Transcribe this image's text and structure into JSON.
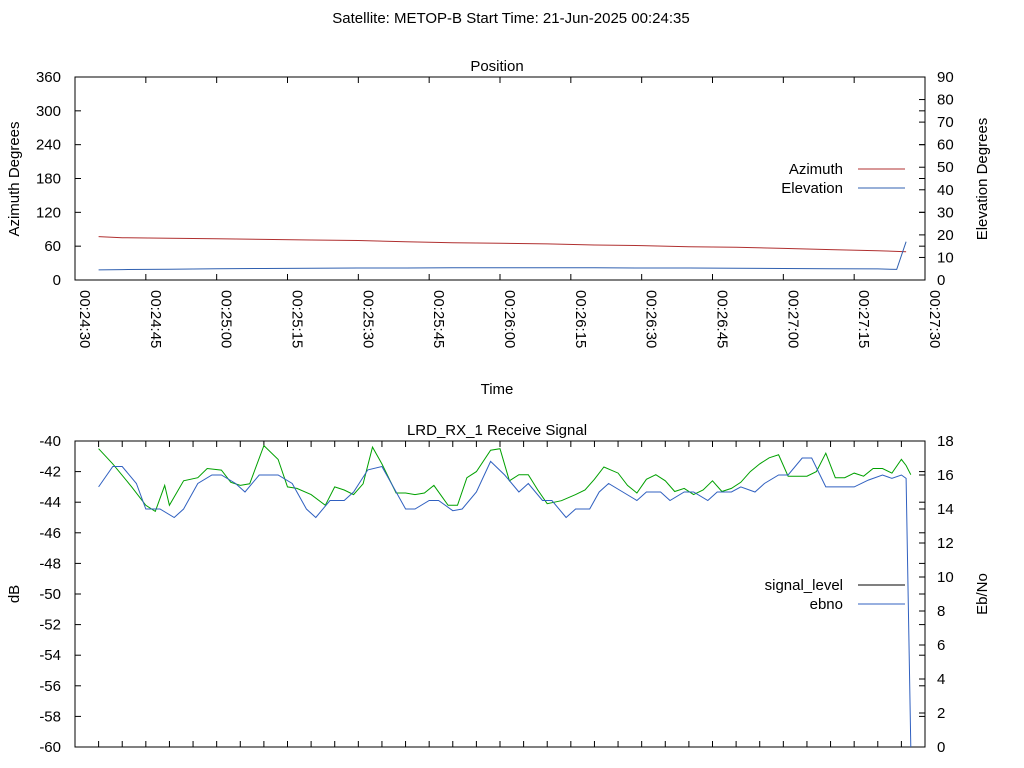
{
  "header": {
    "title": "Satellite: METOP-B    Start Time: 21-Jun-2025 00:24:35"
  },
  "colors": {
    "azimuth": "#b03030",
    "elevation": "#3060b0",
    "signal_level": "#00a000",
    "ebno": "#3060c0",
    "legend_signal_level": "#000000",
    "axis": "#000000"
  },
  "chart_data": [
    {
      "type": "line",
      "title": "Position",
      "xlabel": "Time",
      "ylabel": "Azimuth Degrees",
      "y2label": "Elevation Degrees",
      "x_ticks": [
        "00:24:30",
        "00:24:45",
        "00:25:00",
        "00:25:15",
        "00:25:30",
        "00:25:45",
        "00:26:00",
        "00:26:15",
        "00:26:30",
        "00:26:45",
        "00:27:00",
        "00:27:15",
        "00:27:30"
      ],
      "x_range_s": [
        0,
        180
      ],
      "ylim": [
        0,
        360
      ],
      "y_ticks": [
        0,
        60,
        120,
        180,
        240,
        300,
        360
      ],
      "y2lim": [
        0,
        90
      ],
      "y2_ticks": [
        0,
        10,
        20,
        30,
        40,
        50,
        60,
        70,
        80,
        90
      ],
      "legend_position": "right",
      "series": [
        {
          "name": "Azimuth",
          "axis": "y",
          "x": [
            5,
            10,
            20,
            30,
            40,
            50,
            60,
            70,
            80,
            90,
            100,
            110,
            120,
            130,
            140,
            150,
            160,
            170,
            176
          ],
          "values": [
            77,
            75,
            74,
            73,
            72,
            71,
            70,
            68,
            66,
            65,
            64,
            62,
            61,
            59,
            58,
            56,
            54,
            52,
            50
          ]
        },
        {
          "name": "Elevation",
          "axis": "y2",
          "x": [
            5,
            10,
            20,
            30,
            40,
            50,
            60,
            70,
            80,
            90,
            100,
            110,
            120,
            130,
            140,
            150,
            160,
            170,
            174,
            176
          ],
          "values": [
            4.5,
            4.6,
            4.8,
            5,
            5.1,
            5.2,
            5.3,
            5.3,
            5.4,
            5.4,
            5.4,
            5.4,
            5.3,
            5.3,
            5.2,
            5.1,
            5,
            4.9,
            4.7,
            17
          ]
        }
      ]
    },
    {
      "type": "line",
      "title": "LRD_RX_1 Receive Signal",
      "ylabel": "dB",
      "y2label": "Eb/No",
      "ylim": [
        -60,
        -40
      ],
      "y_ticks": [
        -40,
        -42,
        -44,
        -46,
        -48,
        -50,
        -52,
        -54,
        -56,
        -58,
        -60
      ],
      "y2lim": [
        0,
        18
      ],
      "y2_ticks": [
        0,
        2,
        4,
        6,
        8,
        10,
        12,
        14,
        16,
        18
      ],
      "x_range_s": [
        0,
        180
      ],
      "legend_position": "right",
      "series": [
        {
          "name": "signal_level",
          "axis": "y",
          "x": [
            5,
            8,
            12,
            15,
            17,
            19,
            20,
            23,
            26,
            28,
            31,
            33,
            35,
            37,
            40,
            43,
            45,
            47,
            50,
            53,
            55,
            57,
            59,
            61,
            63,
            65,
            68,
            70,
            72,
            74,
            76,
            79,
            81,
            83,
            85,
            88,
            90,
            92,
            94,
            96,
            98,
            100,
            103,
            106,
            108,
            110,
            112,
            115,
            117,
            119,
            121,
            123,
            125,
            127,
            129,
            131,
            133,
            135,
            137,
            139,
            141,
            143,
            145,
            147,
            149,
            151,
            153,
            155,
            157,
            159,
            161,
            163,
            165,
            167,
            169,
            171,
            173,
            175,
            176,
            177
          ],
          "values": [
            -40.5,
            -41.5,
            -43,
            -44.2,
            -44.6,
            -42.9,
            -44.2,
            -42.6,
            -42.4,
            -41.8,
            -41.9,
            -42.7,
            -42.9,
            -42.8,
            -40.3,
            -41.2,
            -43,
            -43.1,
            -43.5,
            -44.2,
            -43,
            -43.2,
            -43.5,
            -42.8,
            -40.4,
            -41.5,
            -43.4,
            -43.4,
            -43.5,
            -43.4,
            -42.9,
            -44.2,
            -44.2,
            -42.4,
            -42,
            -40.6,
            -40.5,
            -42.6,
            -42.2,
            -42.2,
            -43.2,
            -44.1,
            -43.9,
            -43.5,
            -43.2,
            -42.5,
            -41.7,
            -42.1,
            -42.9,
            -43.4,
            -42.5,
            -42.2,
            -42.6,
            -43.3,
            -43.1,
            -43.5,
            -43.2,
            -42.6,
            -43.3,
            -43.1,
            -42.7,
            -42,
            -41.5,
            -41.1,
            -40.9,
            -42.3,
            -42.3,
            -42.3,
            -42,
            -40.8,
            -42.4,
            -42.4,
            -42.1,
            -42.3,
            -41.8,
            -41.8,
            -42.1,
            -41.2,
            -41.6,
            -42.2
          ]
        },
        {
          "name": "ebno",
          "axis": "y2",
          "x": [
            5,
            8,
            10,
            13,
            15,
            18,
            21,
            23,
            26,
            29,
            31,
            34,
            36,
            39,
            43,
            46,
            49,
            51,
            54,
            57,
            59,
            62,
            65,
            67,
            70,
            72,
            75,
            77,
            80,
            82,
            85,
            88,
            91,
            94,
            96,
            99,
            101,
            104,
            106,
            109,
            111,
            113,
            116,
            119,
            121,
            124,
            126,
            129,
            131,
            134,
            136,
            139,
            141,
            144,
            146,
            149,
            151,
            154,
            156,
            159,
            162,
            165,
            168,
            171,
            173,
            175,
            176,
            177
          ],
          "values": [
            15.3,
            16.5,
            16.5,
            15.5,
            14,
            14,
            13.5,
            14,
            15.5,
            16,
            16,
            15.5,
            15,
            16,
            16,
            15.5,
            14,
            13.5,
            14.5,
            14.5,
            15,
            16.3,
            16.5,
            15.5,
            14,
            14,
            14.5,
            14.5,
            13.9,
            14,
            15,
            16.8,
            16,
            15,
            15.5,
            14.5,
            14.5,
            13.5,
            14,
            14,
            15,
            15.5,
            15,
            14.5,
            15,
            15,
            14.5,
            15,
            15,
            14.5,
            15,
            15,
            15.3,
            15,
            15.5,
            16,
            16,
            17,
            17,
            15.3,
            15.3,
            15.3,
            15.7,
            16,
            15.8,
            16,
            15.8,
            0
          ]
        }
      ]
    }
  ]
}
